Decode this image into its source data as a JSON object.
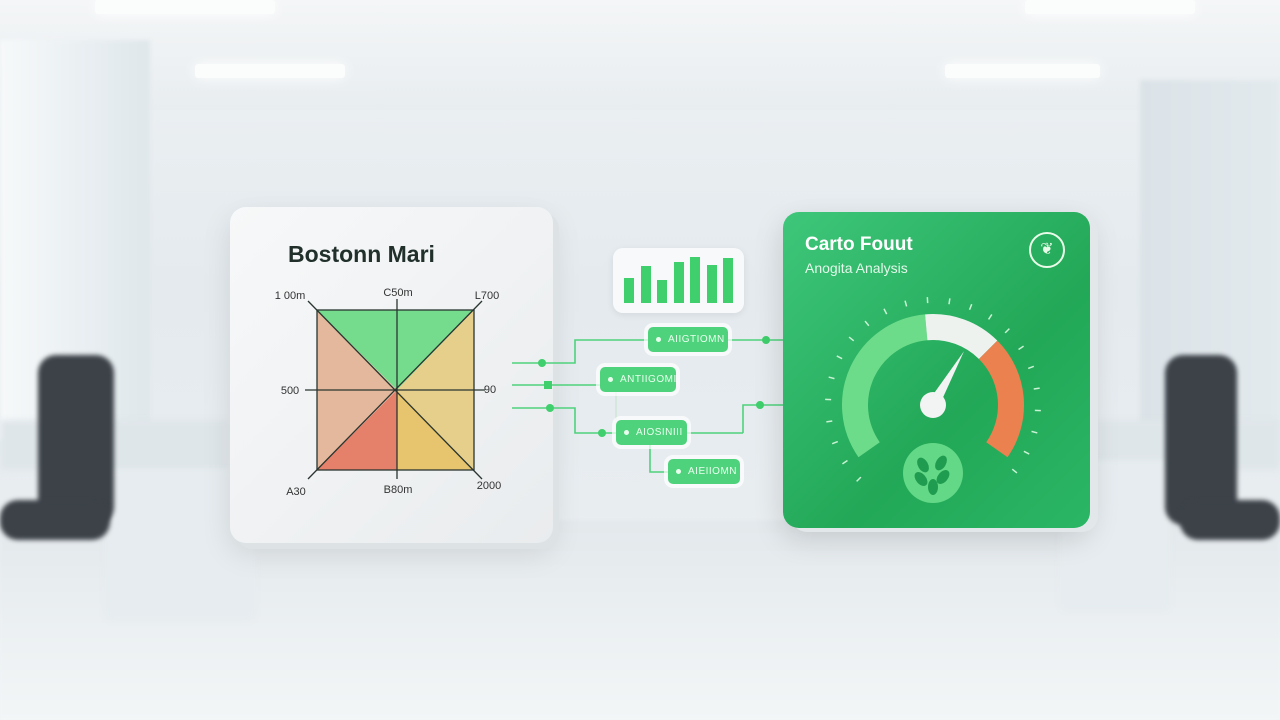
{
  "left_panel": {
    "title": "Bostonn Mari",
    "labels": {
      "top_left": "1 00m",
      "top_center": "C50m",
      "top_right": "L700",
      "mid_left": "500",
      "mid_right": "90",
      "bottom_left": "A30",
      "bottom_center": "B80m",
      "bottom_right": "2000"
    },
    "colors": {
      "top": "#74dc8c",
      "left": "#e3b89c",
      "right": "#e6cf8a",
      "bottom_left": "#e5806a",
      "bottom_right": "#e6c56e"
    }
  },
  "flow": {
    "tags": [
      {
        "label": "AIIGTIOMN"
      },
      {
        "label": "ANTIIGOMI"
      },
      {
        "label": "AIOSINIII"
      },
      {
        "label": "AIEIIOMN"
      }
    ],
    "mini_bars": [
      0.55,
      0.8,
      0.5,
      0.9,
      1.0,
      0.83,
      0.98
    ],
    "accent": "#3fcf6c"
  },
  "right_panel": {
    "title": "Carto Fouut",
    "subtitle": "Anogita Analysis",
    "icon": "leaf-icon",
    "gauge": {
      "value": 0.62,
      "colors": {
        "low": "#6ddc8a",
        "mid": "#eef2ef",
        "high": "#ec8150"
      }
    },
    "bottom_icon": "leaf-cluster-icon"
  }
}
